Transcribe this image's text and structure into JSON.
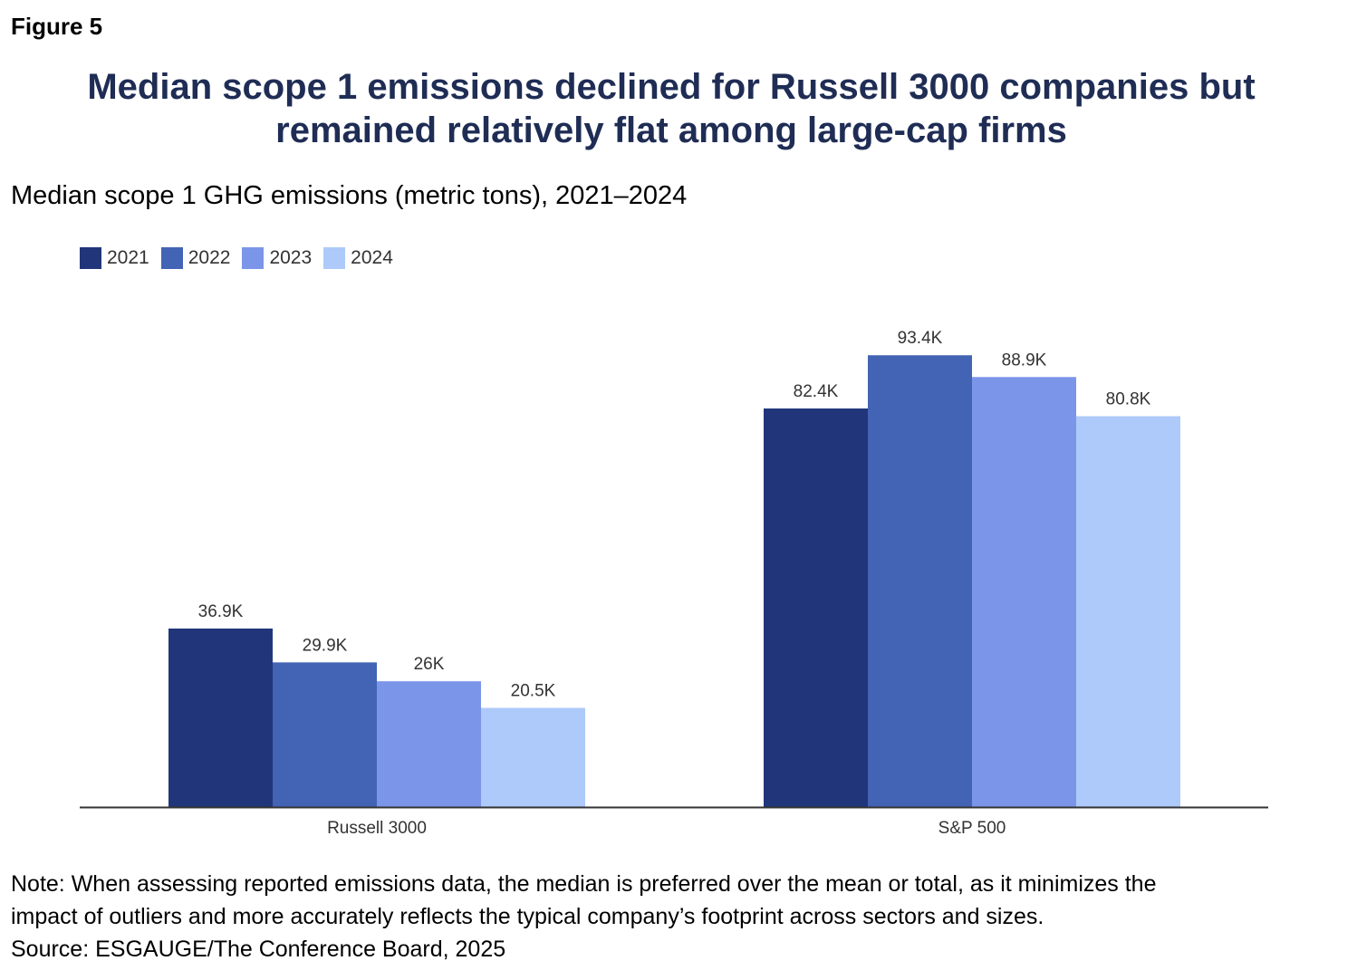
{
  "figure_label": "Figure 5",
  "title_lines": [
    "Median scope 1 emissions declined for Russell 3000 companies but",
    "remained relatively flat among large-cap firms"
  ],
  "subtitle": "Median scope 1 GHG emissions (metric tons), 2021–2024",
  "colors": {
    "title": "#1f2d55",
    "2021": "#21367a",
    "2022": "#4363b4",
    "2023": "#7b96e8",
    "2024": "#aecafa"
  },
  "chart_data": {
    "type": "bar",
    "title": "Median scope 1 GHG emissions (metric tons), 2021–2024",
    "categories": [
      "Russell 3000",
      "S&P 500"
    ],
    "series": [
      {
        "name": "2021",
        "values": [
          36900,
          82400
        ],
        "labels": [
          "36.9K",
          "82.4K"
        ],
        "color": "#21367a"
      },
      {
        "name": "2022",
        "values": [
          29900,
          93400
        ],
        "labels": [
          "29.9K",
          "93.4K"
        ],
        "color": "#4363b4"
      },
      {
        "name": "2023",
        "values": [
          26000,
          88900
        ],
        "labels": [
          "26K",
          "88.9K"
        ],
        "color": "#7b96e8"
      },
      {
        "name": "2024",
        "values": [
          20500,
          80800
        ],
        "labels": [
          "20.5K",
          "80.8K"
        ],
        "color": "#aecafa"
      }
    ],
    "ylim": [
      0,
      100000
    ],
    "grid": false,
    "legend_position": "top-left",
    "xlabel": "",
    "ylabel": ""
  },
  "note_lines": [
    "Note: When assessing reported emissions data, the median is preferred over the mean or total, as it minimizes the",
    "impact of outliers and more accurately reflects the typical company’s footprint across sectors and sizes."
  ],
  "source": "Source: ESGAUGE/The Conference Board, 2025"
}
